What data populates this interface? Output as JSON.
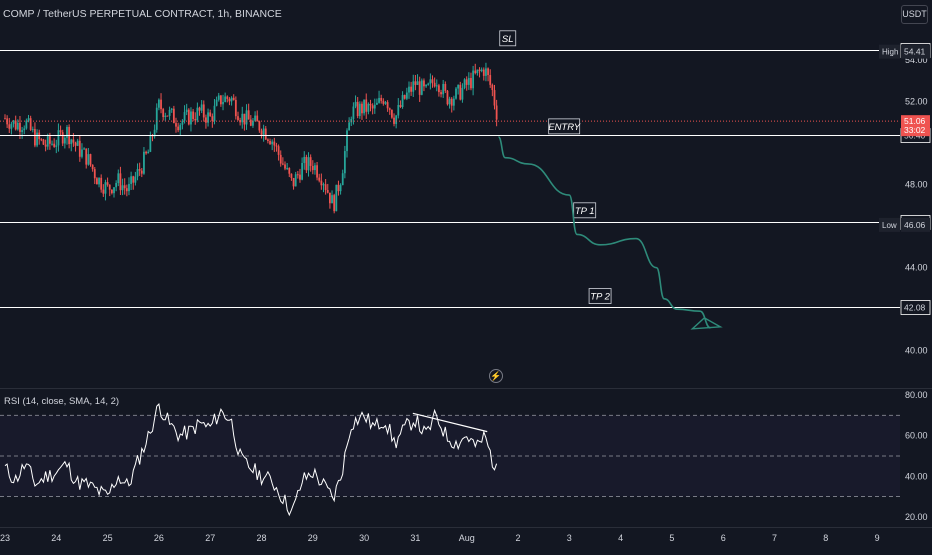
{
  "header": {
    "title": "COMP / TetherUS PERPETUAL CONTRACT, 1h, BINANCE",
    "currency_button": "USDT"
  },
  "indicator": {
    "title": "RSI (14, close, SMA, 14, 2)"
  },
  "colors": {
    "background": "#131722",
    "up": "#26a69a",
    "down": "#ef5350",
    "lines": "#ffffff",
    "arrow": "#2e8b7a",
    "rsi_line": "#ffffff",
    "grid": "#2a2e39"
  },
  "icons": {
    "bolt": "lightning-bolt-icon"
  },
  "chart_data": [
    {
      "type": "candlestick",
      "title": "COMP / TetherUS PERPETUAL CONTRACT, 1h, BINANCE",
      "x_ticks": [
        "23",
        "24",
        "25",
        "26",
        "27",
        "28",
        "29",
        "30",
        "31",
        "Aug",
        "2",
        "3",
        "4",
        "5",
        "6",
        "7",
        "8",
        "9"
      ],
      "y_ticks": [
        40.0,
        42.0,
        44.0,
        46.0,
        48.0,
        52.0,
        54.0
      ],
      "y_tick_labels": [
        "40.00",
        "42.00",
        "44.00",
        "46.00",
        "48.00",
        "52.00",
        "54.00"
      ],
      "ylim": [
        38.2,
        56.9
      ],
      "close_path": [
        {
          "day": 23.0,
          "value": 51.2
        },
        {
          "day": 23.2,
          "value": 50.9
        },
        {
          "day": 23.4,
          "value": 51.0
        },
        {
          "day": 23.6,
          "value": 50.2
        },
        {
          "day": 23.8,
          "value": 49.9
        },
        {
          "day": 24.0,
          "value": 50.1
        },
        {
          "day": 24.2,
          "value": 50.6
        },
        {
          "day": 24.4,
          "value": 49.8
        },
        {
          "day": 24.6,
          "value": 49.3
        },
        {
          "day": 24.8,
          "value": 48.3
        },
        {
          "day": 25.0,
          "value": 47.8
        },
        {
          "day": 25.2,
          "value": 48.2
        },
        {
          "day": 25.4,
          "value": 47.7
        },
        {
          "day": 25.6,
          "value": 48.6
        },
        {
          "day": 25.8,
          "value": 49.6
        },
        {
          "day": 26.0,
          "value": 51.8
        },
        {
          "day": 26.2,
          "value": 51.4
        },
        {
          "day": 26.4,
          "value": 51.0
        },
        {
          "day": 26.6,
          "value": 51.3
        },
        {
          "day": 26.8,
          "value": 51.5
        },
        {
          "day": 27.0,
          "value": 51.2
        },
        {
          "day": 27.2,
          "value": 52.1
        },
        {
          "day": 27.4,
          "value": 52.2
        },
        {
          "day": 27.6,
          "value": 51.3
        },
        {
          "day": 27.8,
          "value": 51.0
        },
        {
          "day": 28.0,
          "value": 50.8
        },
        {
          "day": 28.2,
          "value": 50.2
        },
        {
          "day": 28.4,
          "value": 49.1
        },
        {
          "day": 28.6,
          "value": 48.0
        },
        {
          "day": 28.8,
          "value": 48.9
        },
        {
          "day": 29.0,
          "value": 49.0
        },
        {
          "day": 29.2,
          "value": 48.3
        },
        {
          "day": 29.4,
          "value": 47.0
        },
        {
          "day": 29.55,
          "value": 48.4
        },
        {
          "day": 29.75,
          "value": 51.5
        },
        {
          "day": 30.0,
          "value": 51.7
        },
        {
          "day": 30.2,
          "value": 51.6
        },
        {
          "day": 30.4,
          "value": 52.3
        },
        {
          "day": 30.6,
          "value": 51.2
        },
        {
          "day": 30.8,
          "value": 52.2
        },
        {
          "day": 31.0,
          "value": 52.9
        },
        {
          "day": 31.2,
          "value": 52.4
        },
        {
          "day": 31.4,
          "value": 53.2
        },
        {
          "day": 31.6,
          "value": 52.2
        },
        {
          "day": 31.8,
          "value": 52.3
        },
        {
          "day": 32.0,
          "value": 52.8
        },
        {
          "day": 32.2,
          "value": 53.3
        },
        {
          "day": 32.35,
          "value": 53.6
        },
        {
          "day": 32.5,
          "value": 52.5
        },
        {
          "day": 32.62,
          "value": 51.06
        }
      ],
      "high": 54.41,
      "low": 46.06,
      "last_price": 51.06,
      "countdown": "33:02",
      "levels": [
        {
          "name": "SL",
          "value": 54.5,
          "label": "SL",
          "price_label": "54.50"
        },
        {
          "name": "ENTRY",
          "value": 50.4,
          "label": "ENTRY",
          "price_label": "50.40"
        },
        {
          "name": "TP 1",
          "value": 46.21,
          "label": "TP 1",
          "price_label": "46.21"
        },
        {
          "name": "TP 2",
          "value": 42.08,
          "label": "TP 2",
          "price_label": "42.08"
        }
      ],
      "badges": {
        "high_label": "High",
        "high_value": "54.41",
        "low_label": "Low",
        "low_value": "46.06",
        "last_value": "51.06"
      },
      "projection_path": [
        {
          "day": 32.62,
          "value": 50.3
        },
        {
          "day": 32.75,
          "value": 49.3
        },
        {
          "day": 33.2,
          "value": 49.0
        },
        {
          "day": 34.0,
          "value": 47.5
        },
        {
          "day": 34.15,
          "value": 45.6
        },
        {
          "day": 34.6,
          "value": 45.1
        },
        {
          "day": 35.3,
          "value": 45.4
        },
        {
          "day": 35.7,
          "value": 44.0
        },
        {
          "day": 35.85,
          "value": 42.5
        },
        {
          "day": 36.1,
          "value": 42.0
        },
        {
          "day": 36.55,
          "value": 41.9
        },
        {
          "day": 36.75,
          "value": 41.1
        }
      ]
    },
    {
      "type": "line",
      "title": "RSI (14, close, SMA, 14, 2)",
      "y_ticks": [
        20.0,
        40.0,
        60.0,
        80.0
      ],
      "y_tick_labels": [
        "20.00",
        "40.00",
        "60.00",
        "80.00"
      ],
      "ylim": [
        15,
        83
      ],
      "bands": [
        70,
        50,
        30
      ],
      "series": [
        {
          "values_path": [
            {
              "day": 23.0,
              "value": 44
            },
            {
              "day": 23.2,
              "value": 38
            },
            {
              "day": 23.4,
              "value": 46
            },
            {
              "day": 23.6,
              "value": 36
            },
            {
              "day": 23.8,
              "value": 40
            },
            {
              "day": 24.0,
              "value": 42
            },
            {
              "day": 24.2,
              "value": 46
            },
            {
              "day": 24.4,
              "value": 37
            },
            {
              "day": 24.6,
              "value": 36
            },
            {
              "day": 24.8,
              "value": 33
            },
            {
              "day": 25.0,
              "value": 30
            },
            {
              "day": 25.2,
              "value": 40
            },
            {
              "day": 25.4,
              "value": 35
            },
            {
              "day": 25.6,
              "value": 48
            },
            {
              "day": 25.8,
              "value": 60
            },
            {
              "day": 26.0,
              "value": 75
            },
            {
              "day": 26.2,
              "value": 66
            },
            {
              "day": 26.4,
              "value": 60
            },
            {
              "day": 26.6,
              "value": 62
            },
            {
              "day": 26.8,
              "value": 66
            },
            {
              "day": 27.0,
              "value": 64
            },
            {
              "day": 27.2,
              "value": 72
            },
            {
              "day": 27.4,
              "value": 68
            },
            {
              "day": 27.6,
              "value": 48
            },
            {
              "day": 27.8,
              "value": 44
            },
            {
              "day": 28.0,
              "value": 40
            },
            {
              "day": 28.2,
              "value": 38
            },
            {
              "day": 28.4,
              "value": 30
            },
            {
              "day": 28.6,
              "value": 22
            },
            {
              "day": 28.8,
              "value": 38
            },
            {
              "day": 29.0,
              "value": 42
            },
            {
              "day": 29.2,
              "value": 36
            },
            {
              "day": 29.4,
              "value": 29
            },
            {
              "day": 29.55,
              "value": 40
            },
            {
              "day": 29.75,
              "value": 66
            },
            {
              "day": 30.0,
              "value": 70
            },
            {
              "day": 30.2,
              "value": 64
            },
            {
              "day": 30.4,
              "value": 68
            },
            {
              "day": 30.6,
              "value": 56
            },
            {
              "day": 30.8,
              "value": 64
            },
            {
              "day": 31.0,
              "value": 68
            },
            {
              "day": 31.2,
              "value": 60
            },
            {
              "day": 31.4,
              "value": 70
            },
            {
              "day": 31.6,
              "value": 60
            },
            {
              "day": 31.8,
              "value": 56
            },
            {
              "day": 32.0,
              "value": 60
            },
            {
              "day": 32.2,
              "value": 54
            },
            {
              "day": 32.35,
              "value": 60
            },
            {
              "day": 32.5,
              "value": 48
            },
            {
              "day": 32.62,
              "value": 40
            }
          ]
        }
      ],
      "divergence_line": [
        {
          "day": 30.95,
          "value": 71
        },
        {
          "day": 32.4,
          "value": 62
        }
      ]
    }
  ]
}
